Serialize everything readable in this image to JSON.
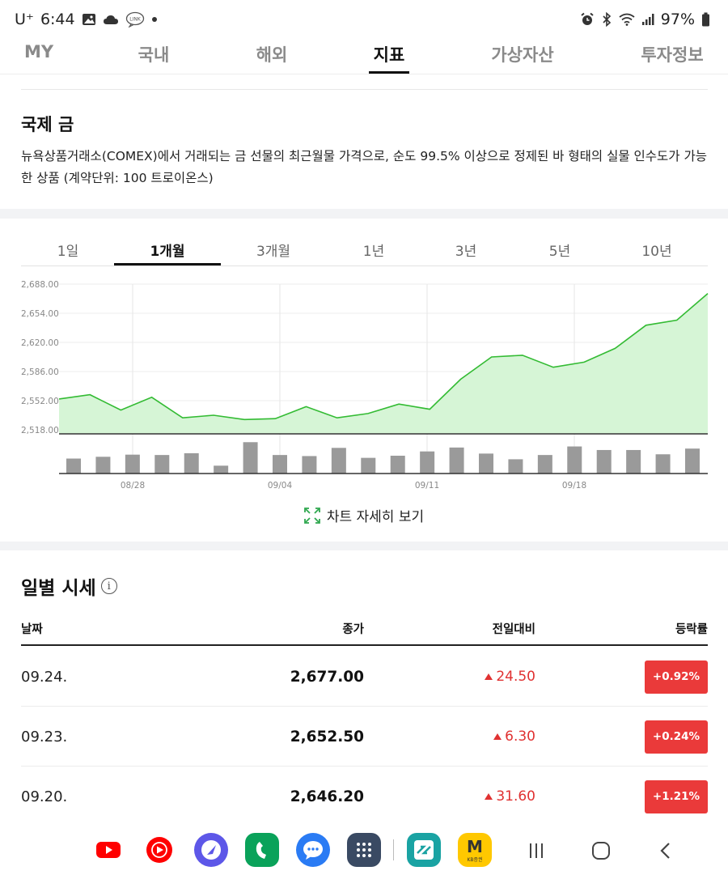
{
  "status_bar": {
    "carrier": "U⁺",
    "time": "6:44",
    "battery": "97%",
    "icons": [
      "gallery-icon",
      "cloud-icon",
      "link-icon",
      "dot-icon",
      "alarm-icon",
      "bluetooth-icon",
      "wifi-icon",
      "signal-icon",
      "battery-icon"
    ]
  },
  "top_tabs": [
    {
      "label": "MY"
    },
    {
      "label": "국내"
    },
    {
      "label": "해외"
    },
    {
      "label": "지표",
      "active": true
    },
    {
      "label": "가상자산"
    },
    {
      "label": "투자정보"
    }
  ],
  "info": {
    "title": "국제 금",
    "description": "뉴욕상품거래소(COMEX)에서 거래되는 금 선물의 최근월물 가격으로, 순도 99.5% 이상으로 정제된 바 형태의 실물 인수도가 가능한 상품 (계약단위: 100 트로이온스)"
  },
  "period_tabs": [
    {
      "label": "1일"
    },
    {
      "label": "1개월",
      "active": true
    },
    {
      "label": "3개월"
    },
    {
      "label": "1년"
    },
    {
      "label": "3년"
    },
    {
      "label": "5년"
    },
    {
      "label": "10년"
    }
  ],
  "chart_data": {
    "type": "area",
    "y_ticks": [
      "2,688.00",
      "2,654.00",
      "2,620.00",
      "2,586.00",
      "2,552.00",
      "2,518.00"
    ],
    "ylim": [
      2518,
      2688
    ],
    "x_tick_labels": [
      "08/28",
      "09/04",
      "09/11",
      "09/18"
    ],
    "price": [
      2554,
      2559,
      2541,
      2556,
      2532,
      2535,
      2530,
      2531,
      2545,
      2532,
      2537,
      2548,
      2542,
      2577,
      2603,
      2605,
      2591,
      2597,
      2613,
      2640,
      2646,
      2677
    ],
    "volume": [
      0.42,
      0.47,
      0.53,
      0.52,
      0.57,
      0.22,
      0.88,
      0.52,
      0.49,
      0.72,
      0.44,
      0.5,
      0.62,
      0.73,
      0.56,
      0.4,
      0.52,
      0.76,
      0.66,
      0.66,
      0.54,
      0.7
    ],
    "colors": {
      "line": "#33bb33",
      "fill": "#d6f5d6",
      "volume": "#9a9a9a"
    },
    "grid": true
  },
  "detail_link": {
    "label": "차트 자세히 보기",
    "icon": "expand-icon"
  },
  "daily": {
    "title": "일별 시세",
    "headers": {
      "date": "날짜",
      "close": "종가",
      "change": "전일대비",
      "rate": "등락률"
    },
    "rows": [
      {
        "date": "09.24.",
        "close": "2,677.00",
        "change": "24.50",
        "rate": "+0.92%"
      },
      {
        "date": "09.23.",
        "close": "2,652.50",
        "change": "6.30",
        "rate": "+0.24%"
      },
      {
        "date": "09.20.",
        "close": "2,646.20",
        "change": "31.60",
        "rate": "+1.21%"
      }
    ],
    "up_color": "#ea3a3a"
  },
  "dock": {
    "apps": [
      "youtube-icon",
      "youtube-music-icon",
      "samsung-internet-icon",
      "phone-icon",
      "messages-icon",
      "app-drawer-icon",
      "bank-app-icon",
      "kb-securities-icon"
    ],
    "kb_label": "KB증권",
    "nav": [
      "recents-icon",
      "home-icon",
      "back-icon"
    ]
  }
}
